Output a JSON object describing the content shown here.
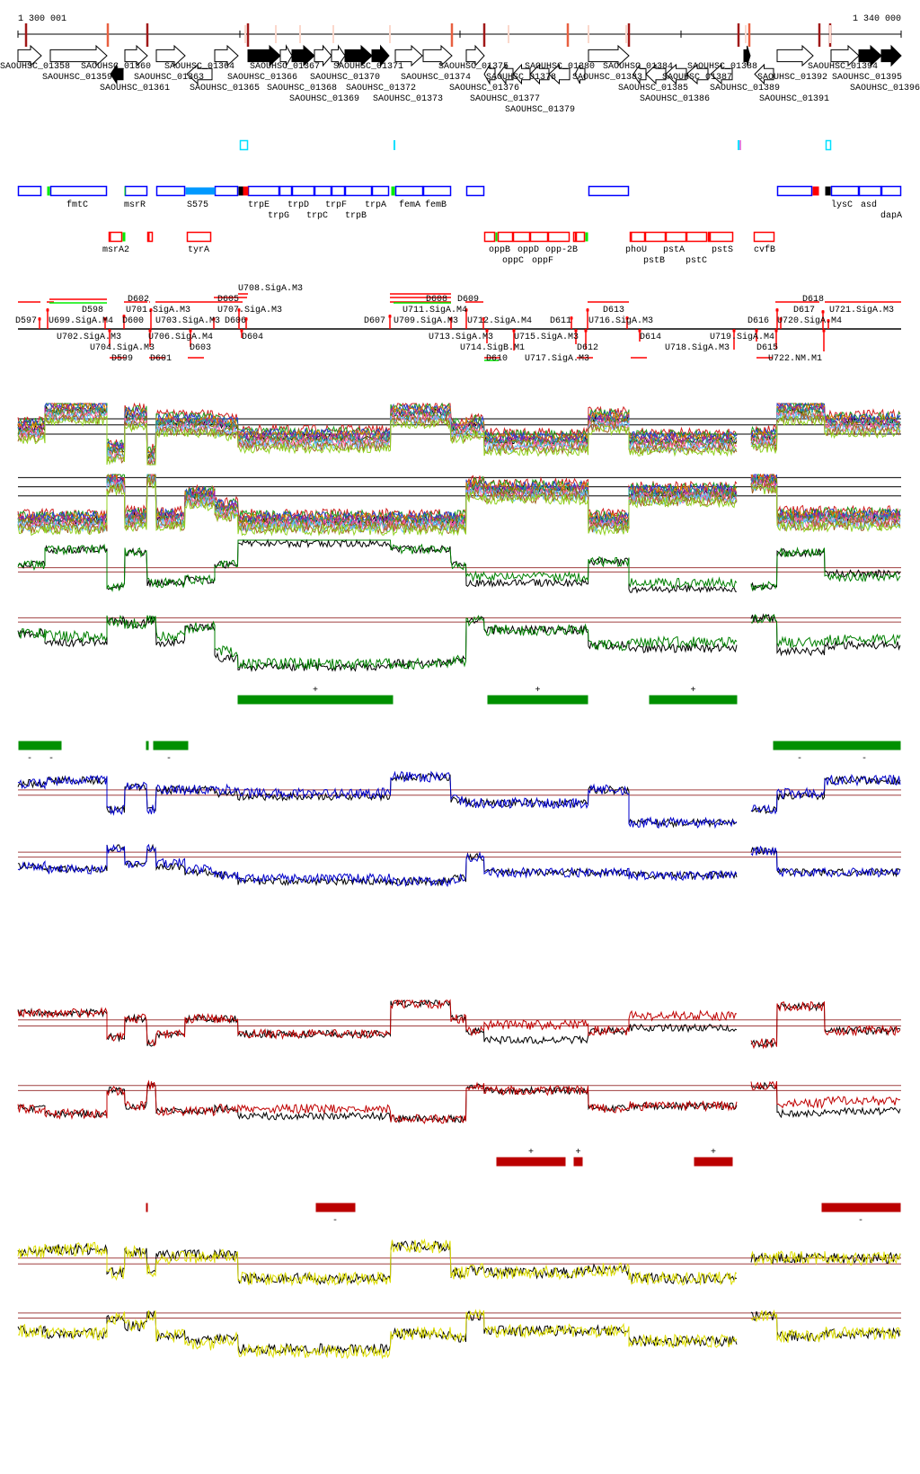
{
  "ruler": {
    "start_label": "1 300 001",
    "end_label": "1 340 000"
  },
  "genes": {
    "labels": [
      "SAOUHSC_01358",
      "SAOUHSC_01359",
      "SAOUHSC_01360",
      "SAOUHSC_01361",
      "SAOUHSC_01363",
      "SAOUHSC_01364",
      "SAOUHSC_01365",
      "SAOUHSC_01366",
      "SAOUHSC_01367",
      "SAOUHSC_01368",
      "SAOUHSC_01369",
      "SAOUHSC_01370",
      "SAOUHSC_01371",
      "SAOUHSC_01372",
      "SAOUHSC_01373",
      "SAOUHSC_01374",
      "SAOUHSC_01375",
      "SAOUHSC_01376",
      "SAOUHSC_01377",
      "SAOUHSC_01378",
      "SAOUHSC_01379",
      "SAOUHSC_01380",
      "SAOUHSC_01383",
      "SAOUHSC_01384",
      "SAOUHSC_01385",
      "SAOUHSC_01386",
      "SAOUHSC_01387",
      "SAOUHSC_01388",
      "SAOUHSC_01389",
      "SAOUHSC_01391",
      "SAOUHSC_01392",
      "SAOUHSC_01394",
      "SAOUHSC_01395",
      "SAOUHSC_01396"
    ]
  },
  "operons_plus": {
    "labels": [
      "fmtC",
      "msrR",
      "S575",
      "trpE",
      "trpG",
      "trpD",
      "trpC",
      "trpF",
      "trpB",
      "trpA",
      "femA",
      "femB",
      "lysC",
      "asd",
      "dapA"
    ]
  },
  "operons_minus": {
    "labels": [
      "msrA2",
      "tyrA",
      "oppB",
      "oppC",
      "oppD",
      "oppF",
      "opp-2B",
      "phoU",
      "pstB",
      "pstA",
      "pstC",
      "pstS",
      "cvfB"
    ]
  },
  "promoters": {
    "labels": [
      "D597",
      "U699.SigA.M4",
      "D598",
      "U701.SigA.M3",
      "U703.SigA.M3",
      "D600",
      "D602",
      "U707.SigA.M3",
      "U708.SigA.M3",
      "D605",
      "D606",
      "D607",
      "U709.SigA.M3",
      "U711.SigA.M4",
      "D608",
      "D609",
      "U712.SigA.M4",
      "D611",
      "U716.SigA.M3",
      "D613",
      "D616",
      "U720.SigA.M4",
      "D617",
      "D618",
      "U721.SigA.M3",
      "D599",
      "D601",
      "D603",
      "D604",
      "D610",
      "D612",
      "D614",
      "D615",
      "U702.SigA.M3",
      "U704.SigA.M3",
      "U706.SigA.M4",
      "U713.SigA.M3",
      "U714.SigB.M1",
      "U715.SigA.M3",
      "U717.SigA.M3",
      "U718.SigA.M3",
      "U719.SigA.M4",
      "U722.NM.M1"
    ]
  },
  "segments": {
    "green": {
      "plus_marks": [
        "+",
        "+",
        "+"
      ],
      "minus_marks": [
        "-",
        "-",
        "-",
        "-",
        "-"
      ]
    },
    "red": {
      "plus_marks": [
        "+",
        "+",
        "+"
      ],
      "minus_marks": [
        "-",
        "-"
      ]
    }
  },
  "colors": {
    "green_track": "#008000",
    "blue_track": "#0000cc",
    "red_track": "#c00000",
    "yellow_track": "#dddd00",
    "segment_green": "#009000",
    "segment_red": "#bb0000",
    "feature_blue": "#0000ff",
    "feature_red": "#ff0000"
  }
}
